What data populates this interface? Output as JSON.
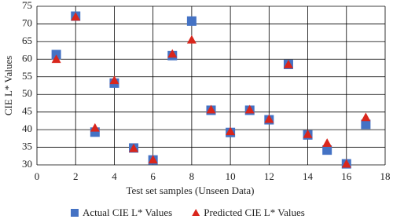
{
  "chart_data": {
    "type": "scatter",
    "x": [
      1,
      2,
      3,
      4,
      5,
      6,
      7,
      8,
      9,
      10,
      11,
      12,
      13,
      14,
      15,
      16,
      17
    ],
    "series": [
      {
        "name": "Actual CIE L* Values",
        "color": "#4472c4",
        "marker": "square",
        "values": [
          61.3,
          72.2,
          39.3,
          53.2,
          34.8,
          31.4,
          61.0,
          70.8,
          45.5,
          39.2,
          45.5,
          42.8,
          58.5,
          38.5,
          34.2,
          30.3,
          41.5
        ]
      },
      {
        "name": "Predicted CIE L* Values",
        "color": "#d9261c",
        "marker": "triangle",
        "values": [
          60.0,
          72.0,
          40.5,
          54.0,
          34.7,
          31.5,
          61.5,
          65.5,
          45.7,
          39.5,
          45.7,
          43.0,
          58.5,
          38.7,
          36.2,
          30.3,
          43.5
        ]
      }
    ],
    "xlabel": "Test set samples (Unseen Data)",
    "ylabel": "CIE L* Values",
    "xlim": [
      0,
      18
    ],
    "xticks": [
      0,
      2,
      4,
      6,
      8,
      10,
      12,
      14,
      16,
      18
    ],
    "ylim": [
      30,
      75
    ],
    "yticks": [
      30,
      35,
      40,
      45,
      50,
      55,
      60,
      65,
      70,
      75
    ],
    "grid": true,
    "legend": "bottom"
  }
}
